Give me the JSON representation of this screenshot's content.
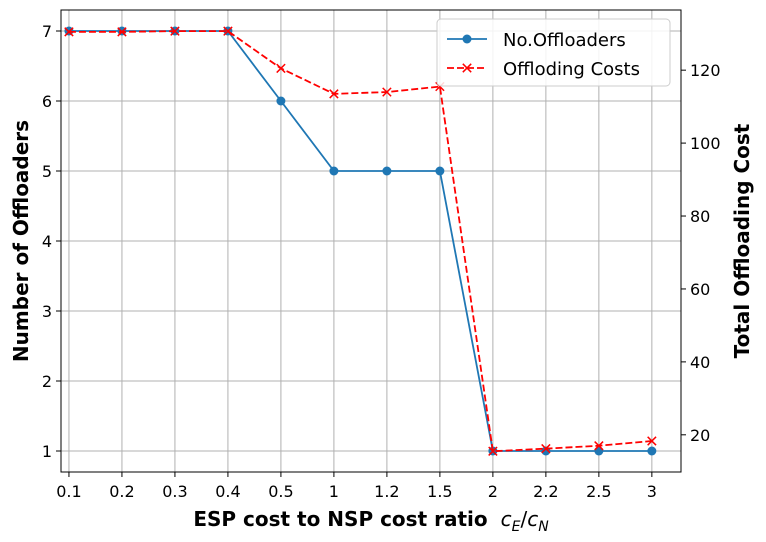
{
  "chart_data": {
    "type": "line",
    "categories": [
      "0.1",
      "0.2",
      "0.3",
      "0.4",
      "0.5",
      "1",
      "1.2",
      "1.5",
      "2",
      "2.2",
      "2.5",
      "3"
    ],
    "xlabel": "ESP cost to NSP cost ratio",
    "xlabel_math": {
      "c": "c",
      "sub1": "E",
      "slash": "/",
      "c2": "c",
      "sub2": "N"
    },
    "ylabel_left": "Number of Offloaders",
    "ylabel_right": "Total Offloading Cost",
    "ylim_left": [
      0.7,
      7.3
    ],
    "ylim_right": [
      9.8,
      136.5
    ],
    "yticks_left": [
      1,
      2,
      3,
      4,
      5,
      6,
      7
    ],
    "yticks_right": [
      20,
      40,
      60,
      80,
      100,
      120
    ],
    "grid": true,
    "legend_position": "top-right",
    "series": [
      {
        "name": "No.Offloaders",
        "axis": "left",
        "color": "#1f77b4",
        "linestyle": "solid",
        "marker": "circle",
        "values": [
          7,
          7,
          7,
          7,
          6,
          5,
          5,
          5,
          1,
          1,
          1,
          1
        ]
      },
      {
        "name": "Offloding Costs",
        "axis": "right",
        "color": "#ff0000",
        "linestyle": "dashed",
        "marker": "x",
        "values": [
          130.5,
          130.5,
          130.7,
          130.7,
          120.5,
          113.5,
          114.0,
          115.5,
          15.5,
          16.2,
          17.0,
          18.3
        ]
      }
    ]
  }
}
